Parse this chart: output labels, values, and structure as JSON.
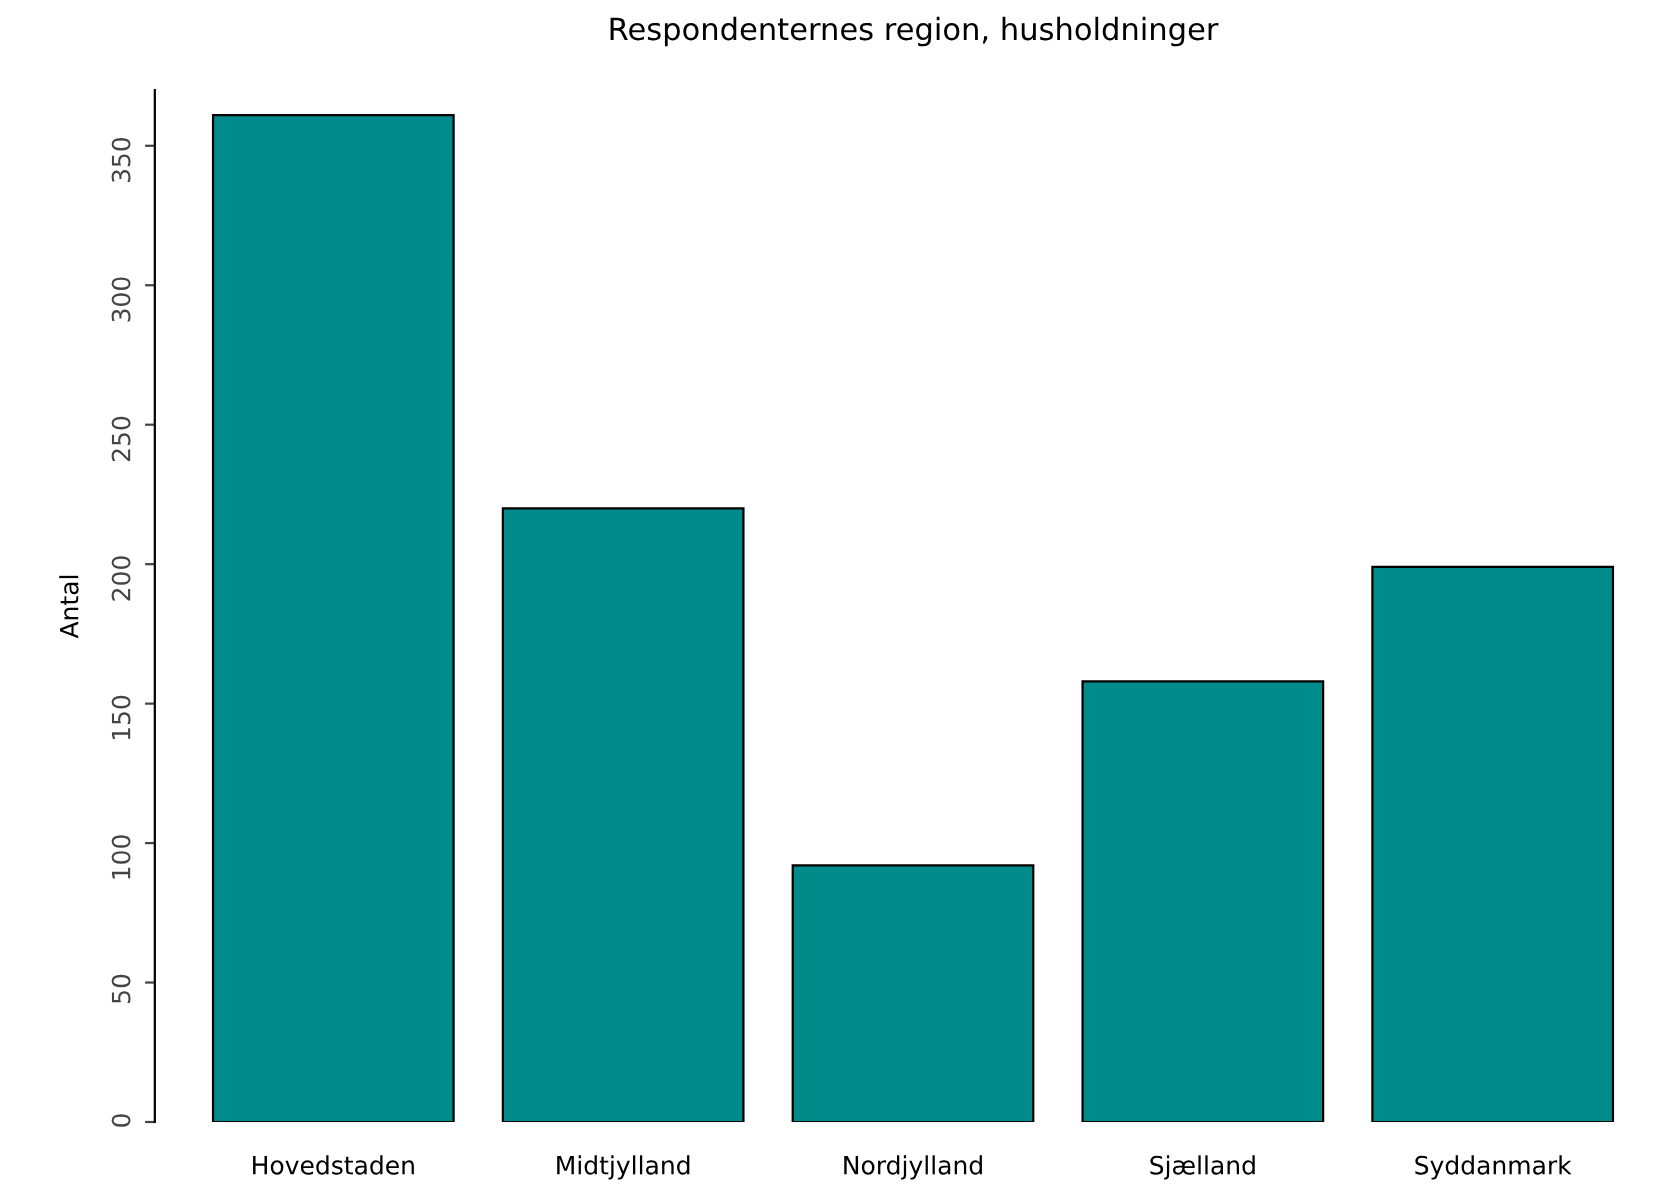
{
  "chart_data": {
    "type": "bar",
    "title": "Respondenternes region, husholdninger",
    "ylabel": "Antal",
    "categories": [
      "Hovedstaden",
      "Midtjylland",
      "Nordjylland",
      "Sjælland",
      "Syddanmark"
    ],
    "values": [
      361,
      220,
      92,
      158,
      199
    ],
    "color": "#008b8b",
    "ylim": [
      0,
      370
    ],
    "yticks": [
      0,
      50,
      100,
      150,
      200,
      250,
      300,
      350
    ],
    "grid": false,
    "legend": false
  }
}
